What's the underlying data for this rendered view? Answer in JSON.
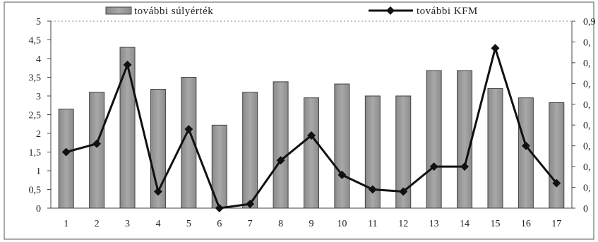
{
  "chart_data": {
    "type": "bar",
    "categories": [
      "1",
      "2",
      "3",
      "4",
      "5",
      "6",
      "7",
      "8",
      "9",
      "10",
      "11",
      "12",
      "13",
      "14",
      "15",
      "16",
      "17"
    ],
    "series": [
      {
        "name": "további súlyérték",
        "type": "bar",
        "axis": "left",
        "values": [
          2.65,
          3.1,
          4.3,
          3.18,
          3.5,
          2.22,
          3.1,
          3.38,
          2.95,
          3.32,
          3.0,
          3.0,
          3.68,
          3.68,
          3.2,
          2.95,
          2.82
        ]
      },
      {
        "name": "további KFM",
        "type": "line",
        "axis": "right",
        "values": [
          0.27,
          0.31,
          0.69,
          0.08,
          0.38,
          0.0,
          0.02,
          0.23,
          0.35,
          0.16,
          0.09,
          0.08,
          0.2,
          0.2,
          0.77,
          0.3,
          0.12
        ]
      }
    ],
    "y_left": {
      "min": 0,
      "max": 5,
      "ticks": [
        0,
        0.5,
        1,
        1.5,
        2,
        2.5,
        3,
        3.5,
        4,
        4.5,
        5
      ],
      "tick_labels": [
        "0",
        "0,5",
        "1",
        "1,5",
        "2",
        "2,5",
        "3",
        "3,5",
        "4",
        "4,5",
        "5"
      ]
    },
    "y_right": {
      "min": 0,
      "max": 0.9,
      "ticks": [
        0,
        0.1,
        0.2,
        0.3,
        0.4,
        0.5,
        0.6,
        0.7,
        0.8,
        0.9
      ],
      "tick_labels": [
        "0",
        "0,",
        "0,",
        "0,",
        "0,",
        "0,",
        "0,",
        "0,",
        "0,",
        "0,9"
      ]
    },
    "legend": {
      "position": "top",
      "items": [
        {
          "label": "további súlyérték",
          "kind": "bar"
        },
        {
          "label": "további KFM",
          "kind": "line"
        }
      ]
    },
    "grid": false,
    "colors": {
      "bar_fill": "#9b9b9b",
      "bar_stroke": "#444444",
      "line": "#111111",
      "frame": "#555555"
    }
  }
}
